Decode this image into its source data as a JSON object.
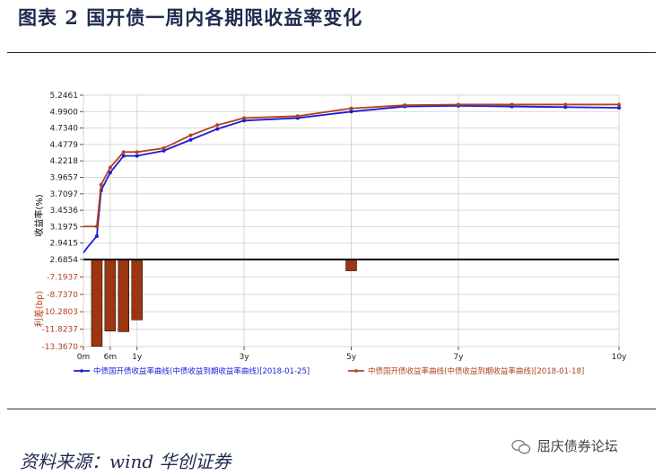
{
  "figure": {
    "title": "图表 2 国开债一周内各期限收益率变化",
    "source": "资料来源：wind  华创证券",
    "watermark": "屈庆债券论坛",
    "watermark_icon": "wechat-icon"
  },
  "chart_data": {
    "type": "line",
    "x_ticks": [
      {
        "label": "0m",
        "x": 0
      },
      {
        "label": "6m",
        "x": 0.5
      },
      {
        "label": "1y",
        "x": 1
      },
      {
        "label": "3y",
        "x": 3
      },
      {
        "label": "5y",
        "x": 5
      },
      {
        "label": "7y",
        "x": 7
      },
      {
        "label": "10y",
        "x": 10
      }
    ],
    "xlim": [
      0,
      10
    ],
    "yield_axis": {
      "label": "收益率(%)",
      "ticks": [
        "5.2461",
        "4.9900",
        "4.7340",
        "4.4779",
        "4.2218",
        "3.9657",
        "3.7097",
        "3.4536",
        "3.1975",
        "2.9415",
        "2.6854"
      ],
      "ylim": [
        2.6854,
        5.2461
      ]
    },
    "spread_axis": {
      "label": "利差(bp)",
      "ticks": [
        "-7.1937",
        "-8.7370",
        "-10.2803",
        "-11.8237",
        "-13.3670"
      ],
      "ylim": [
        -13.367,
        -5.6504
      ]
    },
    "series": [
      {
        "name": "中债国开债收益率曲线(中债收益到期收益率曲线)[2018-01-25]",
        "color": "#1a1adb",
        "x": [
          0,
          0.08,
          0.25,
          0.33,
          0.5,
          0.75,
          1,
          1.5,
          2,
          2.5,
          3,
          4,
          5,
          6,
          7,
          8,
          9,
          10
        ],
        "y": [
          2.79,
          2.88,
          3.05,
          3.76,
          4.04,
          4.3,
          4.3,
          4.38,
          4.55,
          4.72,
          4.85,
          4.89,
          4.99,
          5.07,
          5.08,
          5.07,
          5.06,
          5.05
        ]
      },
      {
        "name": "中债国开债收益率曲线(中债收益到期收益率曲线)[2018-01-18]",
        "color": "#b2401c",
        "x": [
          0,
          0.08,
          0.25,
          0.33,
          0.5,
          0.75,
          1,
          1.5,
          2,
          2.5,
          3,
          4,
          5,
          6,
          7,
          8,
          9,
          10
        ],
        "y": [
          3.2,
          3.2,
          3.2,
          3.85,
          4.12,
          4.36,
          4.36,
          4.42,
          4.62,
          4.78,
          4.89,
          4.92,
          5.04,
          5.09,
          5.1,
          5.1,
          5.1,
          5.1
        ]
      }
    ],
    "spread_bars": {
      "color": "#9c3510",
      "x": [
        0.25,
        0.5,
        0.75,
        1,
        5
      ],
      "values": [
        -13.35,
        -12.0,
        -12.05,
        -11.0,
        -6.65
      ]
    },
    "grid": true,
    "legend_position": "bottom"
  }
}
